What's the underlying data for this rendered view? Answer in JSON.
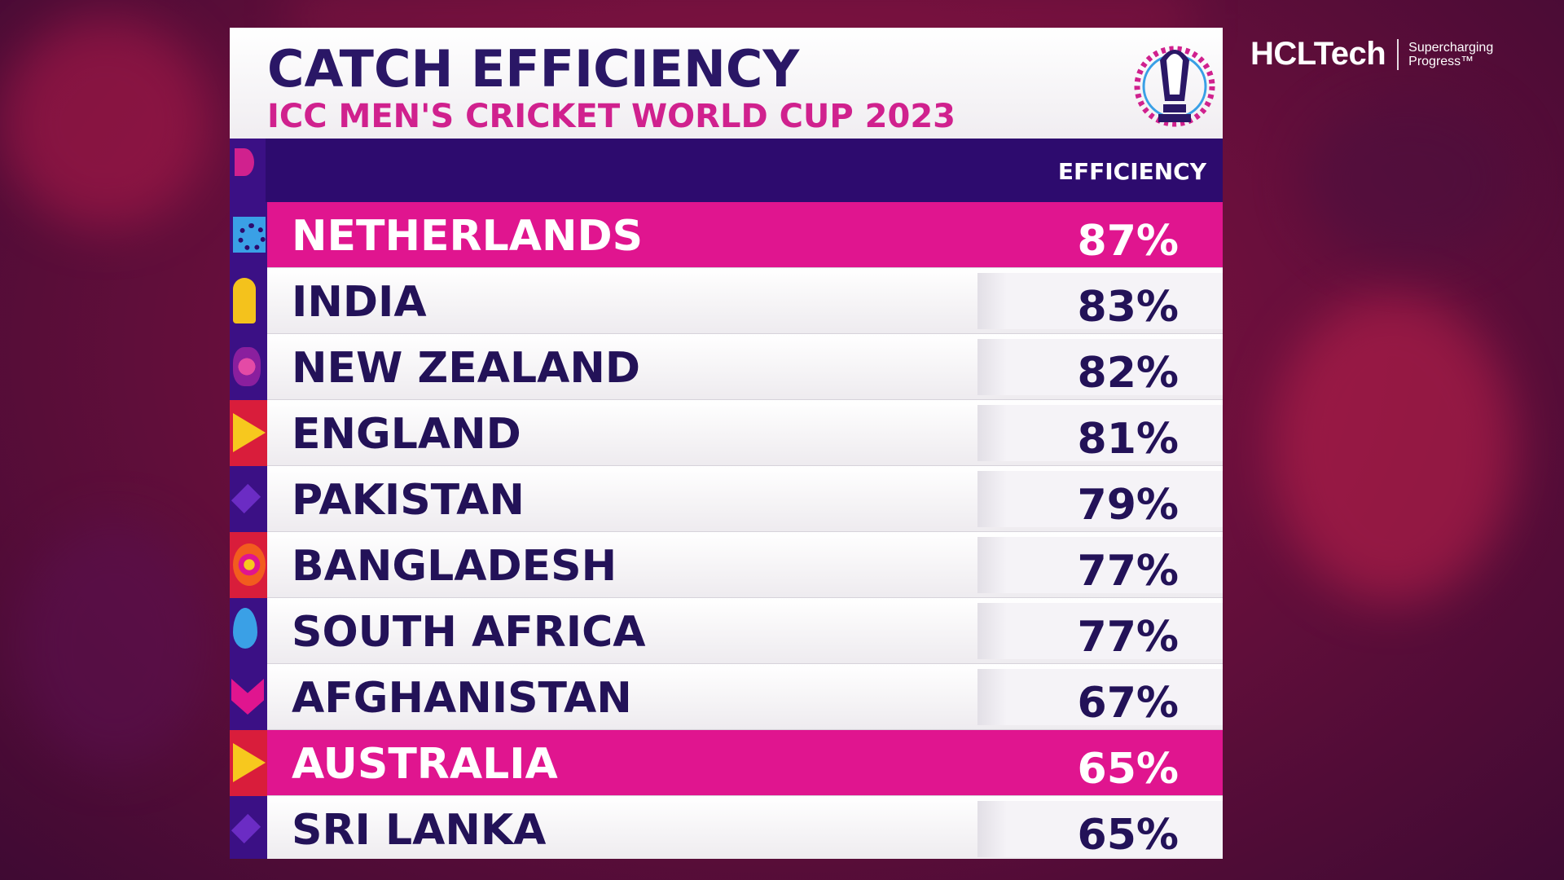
{
  "brand": {
    "name": "HCLTech",
    "tagline_line1": "Supercharging",
    "tagline_line2": "Progress™"
  },
  "graphic": {
    "title": "CATCH EFFICIENCY",
    "subtitle": "ICC MEN'S CRICKET WORLD CUP 2023",
    "column_header": "EFFICIENCY",
    "colors": {
      "title": "#2a1766",
      "subtitle": "#d0218e",
      "header_bar": "#2d0b6e",
      "highlight_row": "#e0158f",
      "row_text": "#231258"
    },
    "rows": [
      {
        "team": "NETHERLANDS",
        "efficiency": "87%",
        "highlight": true,
        "icon": "sun-icon"
      },
      {
        "team": "INDIA",
        "efficiency": "83%",
        "highlight": false,
        "icon": "bell-icon"
      },
      {
        "team": "NEW ZEALAND",
        "efficiency": "82%",
        "highlight": false,
        "icon": "flower-icon"
      },
      {
        "team": "ENGLAND",
        "efficiency": "81%",
        "highlight": false,
        "icon": "triangle-icon"
      },
      {
        "team": "PAKISTAN",
        "efficiency": "79%",
        "highlight": false,
        "icon": "diamond-icon"
      },
      {
        "team": "BANGLADESH",
        "efficiency": "77%",
        "highlight": false,
        "icon": "burst-icon"
      },
      {
        "team": "SOUTH AFRICA",
        "efficiency": "77%",
        "highlight": false,
        "icon": "drop-icon"
      },
      {
        "team": "AFGHANISTAN",
        "efficiency": "67%",
        "highlight": false,
        "icon": "heart-icon"
      },
      {
        "team": "AUSTRALIA",
        "efficiency": "65%",
        "highlight": true,
        "icon": "triangle-icon"
      },
      {
        "team": "SRI LANKA",
        "efficiency": "65%",
        "highlight": false,
        "icon": "diamond-icon"
      }
    ]
  }
}
